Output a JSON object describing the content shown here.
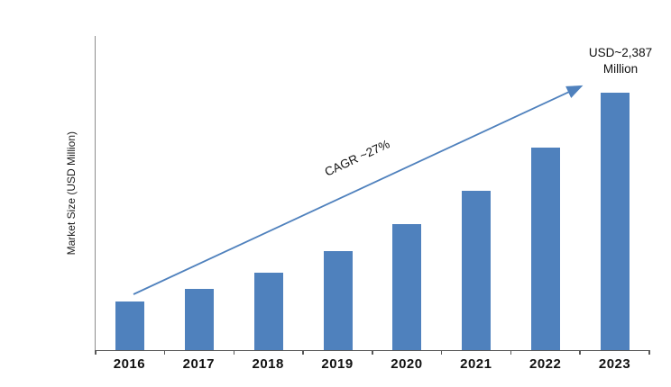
{
  "chart_data": {
    "type": "bar",
    "categories": [
      "2016",
      "2017",
      "2018",
      "2019",
      "2020",
      "2021",
      "2022",
      "2023"
    ],
    "values": [
      450,
      570,
      720,
      915,
      1165,
      1480,
      1880,
      2387
    ],
    "title": "",
    "xlabel": "",
    "ylabel": "Market Size (USD Million)",
    "ylim": [
      0,
      2500
    ],
    "grid": false,
    "legend": false,
    "bar_color": "#4F81BD",
    "arrow_color": "#4F81BD",
    "annotations": {
      "cagr_label": "CAGR ~27%",
      "end_label_line1": "USD~2,387",
      "end_label_line2": "Million"
    }
  }
}
